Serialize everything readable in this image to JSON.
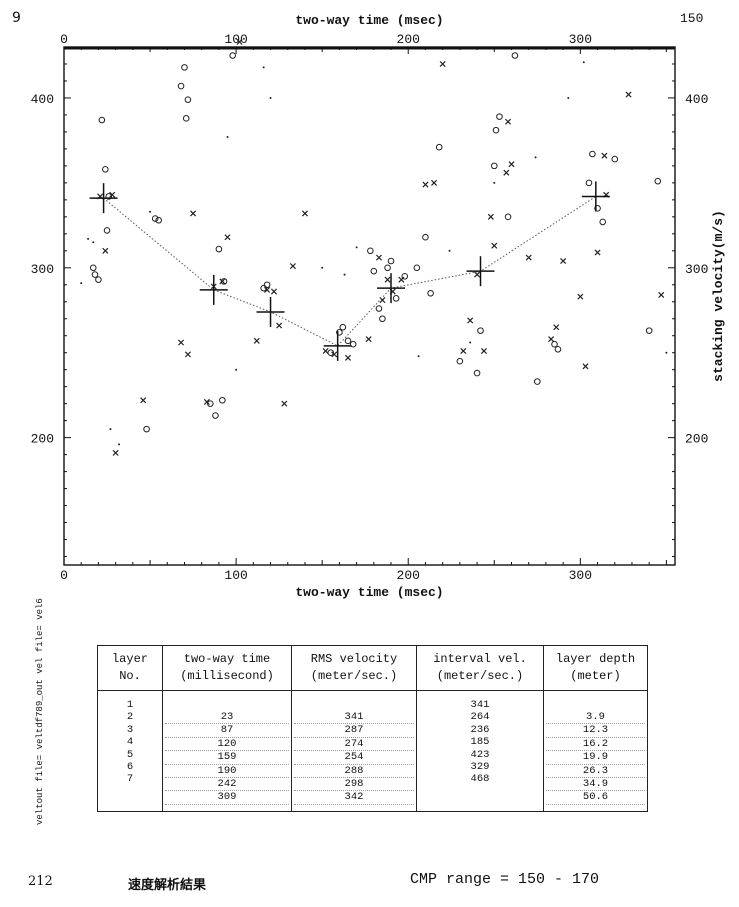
{
  "page_number": "9",
  "side_label": "veltout file= veltdf789_out   vel file= vel6",
  "footer": {
    "left_mark": "212",
    "title": "速度解析結果",
    "cmp_range": "CMP  range  =  150  -  170"
  },
  "chart_data": {
    "type": "scatter",
    "xlabel_top": "two-way time (msec)",
    "xlabel_bottom": "two-way time (msec)",
    "ylabel_right": "stacking velocity(m/s)",
    "x_ticks": [
      "0",
      "100",
      "200",
      "300"
    ],
    "y_ticks_left": [
      "200",
      "300",
      "400"
    ],
    "y_ticks_right": [
      "200",
      "300",
      "400"
    ],
    "corner_label": "150",
    "xlim": [
      0,
      355
    ],
    "ylim": [
      125,
      430
    ],
    "picked": [
      {
        "x": 23,
        "y": 341
      },
      {
        "x": 87,
        "y": 287
      },
      {
        "x": 120,
        "y": 274
      },
      {
        "x": 159,
        "y": 254
      },
      {
        "x": 190,
        "y": 288
      },
      {
        "x": 242,
        "y": 298
      },
      {
        "x": 309,
        "y": 342
      }
    ],
    "scatter_circles": [
      [
        17,
        300
      ],
      [
        18,
        296
      ],
      [
        20,
        293
      ],
      [
        22,
        387
      ],
      [
        25,
        322
      ],
      [
        24,
        358
      ],
      [
        26,
        342
      ],
      [
        48,
        205
      ],
      [
        53,
        329
      ],
      [
        55,
        328
      ],
      [
        68,
        407
      ],
      [
        70,
        418
      ],
      [
        71,
        388
      ],
      [
        72,
        399
      ],
      [
        85,
        220
      ],
      [
        88,
        213
      ],
      [
        90,
        311
      ],
      [
        92,
        222
      ],
      [
        93,
        292
      ],
      [
        98,
        425
      ],
      [
        116,
        288
      ],
      [
        118,
        290
      ],
      [
        155,
        250
      ],
      [
        160,
        262
      ],
      [
        162,
        265
      ],
      [
        165,
        257
      ],
      [
        168,
        255
      ],
      [
        178,
        310
      ],
      [
        180,
        298
      ],
      [
        183,
        276
      ],
      [
        185,
        270
      ],
      [
        188,
        300
      ],
      [
        190,
        304
      ],
      [
        193,
        282
      ],
      [
        198,
        295
      ],
      [
        205,
        300
      ],
      [
        210,
        318
      ],
      [
        213,
        285
      ],
      [
        218,
        371
      ],
      [
        230,
        245
      ],
      [
        240,
        238
      ],
      [
        242,
        263
      ],
      [
        250,
        360
      ],
      [
        251,
        381
      ],
      [
        253,
        389
      ],
      [
        258,
        330
      ],
      [
        262,
        425
      ],
      [
        275,
        233
      ],
      [
        285,
        255
      ],
      [
        287,
        252
      ],
      [
        305,
        350
      ],
      [
        307,
        367
      ],
      [
        310,
        335
      ],
      [
        313,
        327
      ],
      [
        320,
        364
      ],
      [
        340,
        263
      ],
      [
        345,
        351
      ]
    ],
    "scatter_x": [
      [
        21,
        342
      ],
      [
        28,
        343
      ],
      [
        24,
        310
      ],
      [
        30,
        191
      ],
      [
        46,
        222
      ],
      [
        68,
        256
      ],
      [
        72,
        249
      ],
      [
        75,
        332
      ],
      [
        83,
        221
      ],
      [
        87,
        289
      ],
      [
        92,
        292
      ],
      [
        95,
        318
      ],
      [
        102,
        433
      ],
      [
        112,
        257
      ],
      [
        118,
        287
      ],
      [
        122,
        286
      ],
      [
        125,
        266
      ],
      [
        128,
        220
      ],
      [
        133,
        301
      ],
      [
        140,
        332
      ],
      [
        152,
        251
      ],
      [
        157,
        249
      ],
      [
        165,
        247
      ],
      [
        177,
        258
      ],
      [
        183,
        306
      ],
      [
        185,
        281
      ],
      [
        188,
        293
      ],
      [
        191,
        286
      ],
      [
        196,
        293
      ],
      [
        210,
        349
      ],
      [
        215,
        350
      ],
      [
        220,
        420
      ],
      [
        232,
        251
      ],
      [
        236,
        269
      ],
      [
        240,
        296
      ],
      [
        244,
        251
      ],
      [
        248,
        330
      ],
      [
        250,
        313
      ],
      [
        257,
        356
      ],
      [
        258,
        386
      ],
      [
        260,
        361
      ],
      [
        270,
        306
      ],
      [
        283,
        258
      ],
      [
        286,
        265
      ],
      [
        290,
        304
      ],
      [
        300,
        283
      ],
      [
        303,
        242
      ],
      [
        310,
        309
      ],
      [
        314,
        366
      ],
      [
        315,
        343
      ],
      [
        328,
        402
      ],
      [
        347,
        284
      ]
    ],
    "scatter_dots": [
      [
        10,
        291
      ],
      [
        14,
        317
      ],
      [
        17,
        315
      ],
      [
        27,
        205
      ],
      [
        32,
        196
      ],
      [
        50,
        333
      ],
      [
        95,
        377
      ],
      [
        100,
        240
      ],
      [
        116,
        418
      ],
      [
        120,
        400
      ],
      [
        150,
        300
      ],
      [
        163,
        296
      ],
      [
        170,
        312
      ],
      [
        206,
        248
      ],
      [
        224,
        310
      ],
      [
        236,
        256
      ],
      [
        250,
        350
      ],
      [
        274,
        365
      ],
      [
        293,
        400
      ],
      [
        302,
        421
      ],
      [
        350,
        250
      ]
    ]
  },
  "table": {
    "headers": [
      [
        "layer",
        "No."
      ],
      [
        "two-way time",
        "(millisecond)"
      ],
      [
        "RMS velocity",
        "(meter/sec.)"
      ],
      [
        "interval vel.",
        "(meter/sec.)"
      ],
      [
        "layer depth",
        "(meter)"
      ]
    ],
    "layer_no": [
      "1",
      "2",
      "3",
      "4",
      "5",
      "6",
      "7"
    ],
    "time": [
      "23",
      "87",
      "120",
      "159",
      "190",
      "242",
      "309"
    ],
    "rms": [
      "341",
      "287",
      "274",
      "254",
      "288",
      "298",
      "342"
    ],
    "interval": [
      "341",
      "264",
      "236",
      "185",
      "423",
      "329",
      "468"
    ],
    "depth": [
      "3.9",
      "12.3",
      "16.2",
      "19.9",
      "26.3",
      "34.9",
      "50.6"
    ]
  }
}
